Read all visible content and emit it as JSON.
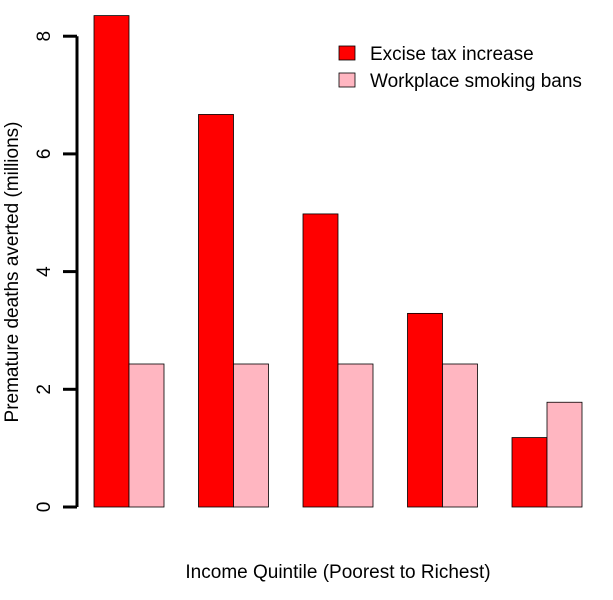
{
  "chart_data": {
    "type": "bar",
    "title": "",
    "xlabel": "Income Quintile (Poorest to Richest)",
    "ylabel": "Premature deaths averted (millions)",
    "ylim": [
      0,
      8.4
    ],
    "yticks": [
      0,
      2,
      4,
      6,
      8
    ],
    "categories": [
      "",
      "",
      "",
      "",
      ""
    ],
    "series": [
      {
        "name": "Excise tax increase",
        "color": "#ff0000",
        "values": [
          8.35,
          6.67,
          4.98,
          3.29,
          1.18
        ]
      },
      {
        "name": "Workplace smoking bans",
        "color": "#ffb6c1",
        "values": [
          2.43,
          2.43,
          2.43,
          2.43,
          1.78
        ]
      }
    ],
    "legend_position": "top-right",
    "grid": false
  }
}
